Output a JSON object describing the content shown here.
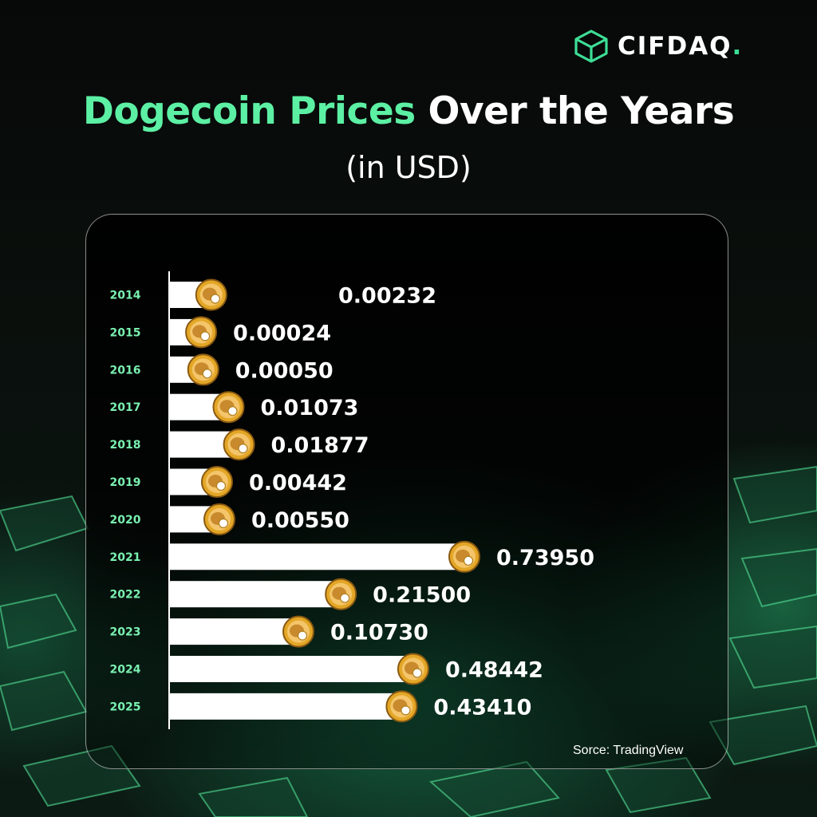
{
  "brand": {
    "name": "CIFDAQ",
    "dot": "."
  },
  "header": {
    "title_highlight": "Dogecoin Prices",
    "title_rest": " Over the Years",
    "subtitle": "(in USD)"
  },
  "source": "Sorce: TradingView",
  "colors": {
    "accent": "#5cf0a4",
    "bar": "#ffffff",
    "year_label": "#7af0b0",
    "coin": "#e3a626"
  },
  "icons": {
    "coin": "dogecoin-coin-icon",
    "logo": "cifdaq-cube-icon"
  },
  "chart_data": {
    "type": "bar",
    "orientation": "horizontal",
    "title": "Dogecoin Prices Over the Years",
    "subtitle": "(in USD)",
    "xlabel": "",
    "ylabel": "",
    "grid": false,
    "legend": "none",
    "categories": [
      "2014",
      "2015",
      "2016",
      "2017",
      "2018",
      "2019",
      "2020",
      "2021",
      "2022",
      "2023",
      "2024",
      "2025"
    ],
    "values": [
      0.00232,
      0.00024,
      0.0005,
      0.01073,
      0.01877,
      0.00442,
      0.0055,
      0.7395,
      0.215,
      0.1073,
      0.48442,
      0.4341
    ],
    "value_labels": [
      "0.00232",
      "0.00024",
      "0.00050",
      "0.01073",
      "0.01877",
      "0.00442",
      "0.00550",
      "0.73950",
      "0.21500",
      "0.10730",
      "0.48442",
      "0.43410"
    ]
  }
}
